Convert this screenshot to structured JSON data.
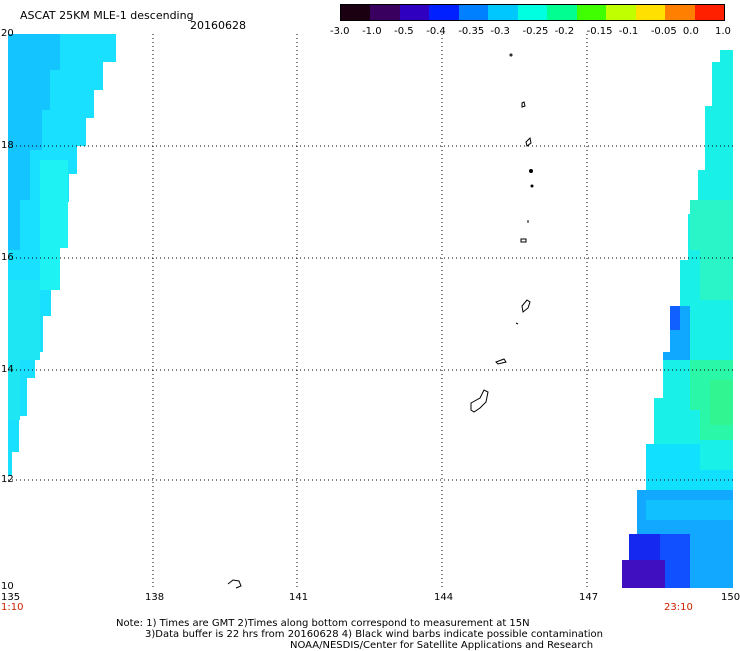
{
  "title": "ASCAT 25KM MLE-1 descending",
  "date": "20160628",
  "colorbar": {
    "ticks": [
      "-3.0",
      "-1.0",
      "-0.5",
      "-0.4",
      "-0.35",
      "-0.3",
      "-0.25",
      "-0.2",
      "-0.15",
      "-0.1",
      "-0.05",
      "0.0",
      "1.0"
    ],
    "colors": [
      "#1a0010",
      "#3a0060",
      "#3000c0",
      "#0020ff",
      "#0080ff",
      "#00c8ff",
      "#00ffe0",
      "#00ff90",
      "#40ff00",
      "#c0ff00",
      "#ffe000",
      "#ff8000",
      "#ff2000"
    ]
  },
  "axes": {
    "lon_ticks": [
      "135",
      "138",
      "141",
      "144",
      "147",
      "150"
    ],
    "lat_ticks": [
      "20",
      "18",
      "16",
      "14",
      "12",
      "10"
    ],
    "lon_range": [
      135,
      150
    ],
    "lat_range": [
      10,
      20
    ]
  },
  "times": {
    "left": "1:10",
    "right": "23:10"
  },
  "note": {
    "line1": "Note: 1) Times are GMT 2)Times along bottom correspond to measurement at 15N",
    "line2": "3)Data buffer is 22 hrs from 20160628 4) Black wind barbs indicate possible contamination",
    "line3": "NOAA/NESDIS/Center for Satellite Applications and Research"
  }
}
